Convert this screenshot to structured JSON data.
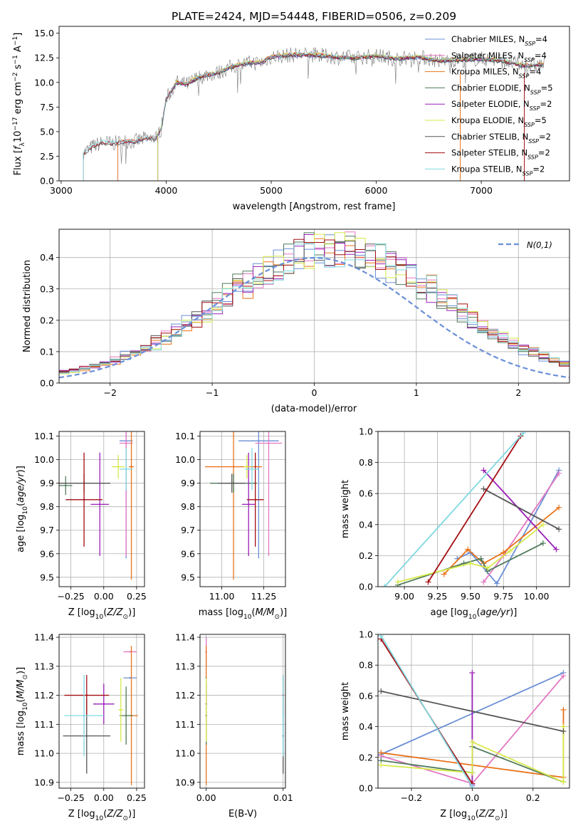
{
  "colors": {
    "Chabrier MILES": "#6b8fd6",
    "Salpeter MILES": "#e377c2",
    "Kroupa MILES": "#e8731a",
    "Chabrier ELODIE": "#4f7a5a",
    "Salpeter ELODIE": "#9a1fb8",
    "Kroupa ELODIE": "#d7e94a",
    "Chabrier STELIB": "#555555",
    "Salpeter STELIB": "#a30d12",
    "Kroupa STELIB": "#7fd8e0"
  },
  "chart_data": [
    {
      "type": "line",
      "title": "PLATE=2424, MJD=54448, FIBERID=0506, z=0.209",
      "xlabel": "wavelength [Angstrom, rest frame]",
      "ylabel": "Flux [f_λ 10^-17 erg cm^-2 s^-1 A^-1]",
      "xlim": [
        2980,
        7840
      ],
      "ylim": [
        0,
        15.7
      ],
      "xticks": [
        3000,
        4000,
        5000,
        6000,
        7000
      ],
      "yticks": [
        0.0,
        2.5,
        5.0,
        7.5,
        10.0,
        12.5,
        15.0
      ],
      "ytick_labels": [
        "0.0",
        "2.5",
        "5.0",
        "7.5",
        "10.0",
        "12.5",
        "15.0"
      ],
      "legend_position": "lower-right",
      "observed_spectrum_approx": {
        "x": [
          3210,
          3300,
          3400,
          3500,
          3600,
          3700,
          3800,
          3900,
          3950,
          4000,
          4100,
          4200,
          4300,
          4400,
          4500,
          4600,
          4700,
          4800,
          4900,
          5000,
          5200,
          5400,
          5600,
          5800,
          6000,
          6200,
          6400,
          6600,
          6800,
          7000,
          7200,
          7400,
          7600
        ],
        "y": [
          2.8,
          3.5,
          3.9,
          3.8,
          4.0,
          4.0,
          4.3,
          4.3,
          5.2,
          8.3,
          10.0,
          9.8,
          10.5,
          10.8,
          11.0,
          11.5,
          11.8,
          12.0,
          12.0,
          12.6,
          12.8,
          12.8,
          12.6,
          12.5,
          12.7,
          12.4,
          12.6,
          12.2,
          12.3,
          12.4,
          12.2,
          11.7,
          11.8
        ]
      },
      "series": [
        {
          "name": "Chabrier MILES, N_SSP=4",
          "start": 3540
        },
        {
          "name": "Salpeter MILES, N_SSP=4",
          "start": 3540
        },
        {
          "name": "Kroupa MILES, N_SSP=4",
          "start": 3540
        },
        {
          "name": "Chabrier ELODIE, N_SSP=5",
          "start": 3920
        },
        {
          "name": "Salpeter ELODIE, N_SSP=2",
          "start": 3920
        },
        {
          "name": "Kroupa ELODIE, N_SSP=5",
          "start": 3920
        },
        {
          "name": "Chabrier STELIB, N_SSP=2",
          "start": 3210
        },
        {
          "name": "Salpeter STELIB, N_SSP=2",
          "start": 3210
        },
        {
          "name": "Kroupa STELIB, N_SSP=2",
          "start": 3210
        }
      ]
    },
    {
      "type": "line",
      "title": "",
      "xlabel": "(data-model)/error",
      "ylabel": "Normed distribution",
      "xlim": [
        -2.5,
        2.5
      ],
      "ylim": [
        0,
        0.49
      ],
      "xticks": [
        -2,
        -1,
        0,
        1,
        2
      ],
      "xtick_labels": [
        "−2",
        "−1",
        "0",
        "1",
        "2"
      ],
      "yticks": [
        0.0,
        0.1,
        0.2,
        0.3,
        0.4
      ],
      "ytick_labels": [
        "0.0",
        "0.1",
        "0.2",
        "0.3",
        "0.4"
      ],
      "legend": "N(0,1)",
      "legend_position": "upper-right",
      "histogram_bin_width": 0.1,
      "histogram_bin_start": -2.5,
      "reference_curve": "normal pdf, mean 0, sd 1"
    },
    {
      "type": "scatter",
      "xlabel": "Z [log10(Z/Z⊙)]",
      "ylabel": "age  [log10(age/yr)]",
      "xlim": [
        -0.34,
        0.31
      ],
      "ylim": [
        9.46,
        10.12
      ],
      "xticks": [
        -0.25,
        0.0,
        0.25
      ],
      "xtick_labels": [
        "−0.25",
        "0.00",
        "0.25"
      ],
      "yticks": [
        9.5,
        9.6,
        9.7,
        9.8,
        9.9,
        10.0,
        10.1
      ],
      "points": [
        {
          "name": "Chabrier MILES",
          "x": 0.17,
          "xerr": 0.05,
          "y": 10.08,
          "yerr": 0.5
        },
        {
          "name": "Salpeter MILES",
          "x": 0.17,
          "xerr": 0.05,
          "y": 10.07,
          "yerr": 0.48
        },
        {
          "name": "Kroupa MILES",
          "x": 0.21,
          "xerr": 0.02,
          "y": 9.97,
          "yerr": 0.48
        },
        {
          "name": "Chabrier ELODIE",
          "x": -0.29,
          "xerr": 0.05,
          "y": 9.89,
          "yerr": 0.04
        },
        {
          "name": "Salpeter ELODIE",
          "x": -0.03,
          "xerr": 0.07,
          "y": 9.81,
          "yerr": 0.22
        },
        {
          "name": "Kroupa ELODIE",
          "x": 0.11,
          "xerr": 0.05,
          "y": 9.97,
          "yerr": 0.05
        },
        {
          "name": "Chabrier STELIB",
          "x": -0.15,
          "xerr": 0.2,
          "y": 9.9,
          "yerr": 0.04
        },
        {
          "name": "Salpeter STELIB",
          "x": -0.15,
          "xerr": 0.14,
          "y": 9.83,
          "yerr": 0.2
        },
        {
          "name": "Kroupa STELIB",
          "x": 0.17,
          "xerr": 0.05,
          "y": 9.96,
          "yerr": 0.09
        }
      ]
    },
    {
      "type": "scatter",
      "xlabel": "mass [log10(M/M⊙)]",
      "ylabel": "",
      "xlim": [
        10.87,
        11.38
      ],
      "ylim": [
        9.46,
        10.12
      ],
      "xticks": [
        11.0,
        11.25
      ],
      "xtick_labels": [
        "11.00",
        "11.25"
      ],
      "yticks": [
        9.5,
        9.6,
        9.7,
        9.8,
        9.9,
        10.0,
        10.1
      ],
      "points": [
        {
          "name": "Chabrier MILES",
          "x": 11.22,
          "xerr": 0.12,
          "y": 10.08,
          "yerr": 0.5
        },
        {
          "name": "Salpeter MILES",
          "x": 11.28,
          "xerr": 0.08,
          "y": 10.07,
          "yerr": 0.48
        },
        {
          "name": "Kroupa MILES",
          "x": 11.07,
          "xerr": 0.17,
          "y": 9.97,
          "yerr": 0.48
        },
        {
          "name": "Chabrier ELODIE",
          "x": 11.07,
          "xerr": 0.14,
          "y": 9.9,
          "yerr": 0.04
        },
        {
          "name": "Salpeter ELODIE",
          "x": 11.16,
          "xerr": 0.04,
          "y": 9.81,
          "yerr": 0.22
        },
        {
          "name": "Kroupa ELODIE",
          "x": 11.15,
          "xerr": 0.02,
          "y": 9.97,
          "yerr": 0.05
        },
        {
          "name": "Chabrier STELIB",
          "x": 11.06,
          "xerr": 0.08,
          "y": 9.9,
          "yerr": 0.04
        },
        {
          "name": "Salpeter STELIB",
          "x": 11.2,
          "xerr": 0.05,
          "y": 9.83,
          "yerr": 0.2
        },
        {
          "name": "Kroupa STELIB",
          "x": 11.18,
          "xerr": 0.04,
          "y": 9.96,
          "yerr": 0.09
        }
      ]
    },
    {
      "type": "line",
      "xlabel": "age  [log10(age/yr)]",
      "ylabel": "mass weight",
      "xlim": [
        8.8,
        10.25
      ],
      "ylim": [
        0,
        1.0
      ],
      "xticks": [
        9.0,
        9.25,
        9.5,
        9.75,
        10.0
      ],
      "xtick_labels": [
        "9.00",
        "9.25",
        "9.50",
        "9.75",
        "10.00"
      ],
      "yticks": [
        0.0,
        0.2,
        0.4,
        0.6,
        0.8,
        1.0
      ],
      "ytick_labels": [
        "0.0",
        "0.2",
        "0.4",
        "0.6",
        "0.8",
        "1.0"
      ],
      "series": [
        {
          "name": "Chabrier MILES",
          "x": [
            9.4,
            9.5,
            9.7,
            10.17
          ],
          "y": [
            0.18,
            0.22,
            0.02,
            0.75
          ]
        },
        {
          "name": "Salpeter MILES",
          "x": [
            9.6,
            9.75,
            10.17
          ],
          "y": [
            0.03,
            0.2,
            0.73
          ]
        },
        {
          "name": "Kroupa MILES",
          "x": [
            9.3,
            9.48,
            9.6,
            9.75,
            10.17
          ],
          "y": [
            0.08,
            0.24,
            0.15,
            0.22,
            0.51
          ]
        },
        {
          "name": "Chabrier ELODIE",
          "x": [
            8.95,
            9.45,
            9.58,
            9.63,
            10.05
          ],
          "y": [
            0.01,
            0.15,
            0.18,
            0.1,
            0.28
          ]
        },
        {
          "name": "Salpeter ELODIE",
          "x": [
            9.6,
            10.15
          ],
          "y": [
            0.75,
            0.24
          ]
        },
        {
          "name": "Kroupa ELODIE",
          "x": [
            8.95,
            9.5,
            9.63,
            9.8,
            10.05
          ],
          "y": [
            0.03,
            0.15,
            0.12,
            0.23,
            0.4
          ]
        },
        {
          "name": "Chabrier STELIB",
          "x": [
            9.6,
            10.17
          ],
          "y": [
            0.63,
            0.37
          ]
        },
        {
          "name": "Salpeter STELIB",
          "x": [
            9.18,
            9.88
          ],
          "y": [
            0.03,
            0.97
          ]
        },
        {
          "name": "Kroupa STELIB",
          "x": [
            8.85,
            9.9
          ],
          "y": [
            0.0,
            0.99
          ]
        }
      ]
    },
    {
      "type": "scatter",
      "xlabel": "Z [log10(Z/Z⊙)]",
      "ylabel": "mass [log10(M/M⊙)]",
      "xlim": [
        -0.34,
        0.31
      ],
      "ylim": [
        10.88,
        11.41
      ],
      "xticks": [
        -0.25,
        0.0,
        0.25
      ],
      "xtick_labels": [
        "−0.25",
        "0.00",
        "0.25"
      ],
      "yticks": [
        10.9,
        11.0,
        11.1,
        11.2,
        11.3,
        11.4
      ],
      "points": [
        {
          "name": "Chabrier MILES",
          "x": 0.2,
          "xerr": 0.05,
          "y": 11.26,
          "yerr": 0.0
        },
        {
          "name": "Salpeter MILES",
          "x": 0.2,
          "xerr": 0.05,
          "y": 11.35,
          "yerr": 0.0
        },
        {
          "name": "Kroupa MILES",
          "x": 0.21,
          "xerr": 0.05,
          "y": 11.13,
          "yerr": 0.24
        },
        {
          "name": "Chabrier ELODIE",
          "x": 0.17,
          "xerr": 0.05,
          "y": 11.13,
          "yerr": 0.1
        },
        {
          "name": "Salpeter ELODIE",
          "x": 0.0,
          "xerr": 0.08,
          "y": 11.17,
          "yerr": 0.07
        },
        {
          "name": "Kroupa ELODIE",
          "x": 0.13,
          "xerr": 0.02,
          "y": 11.15,
          "yerr": 0.11
        },
        {
          "name": "Chabrier STELIB",
          "x": -0.13,
          "xerr": 0.18,
          "y": 11.06,
          "yerr": 0.13
        },
        {
          "name": "Salpeter STELIB",
          "x": -0.13,
          "xerr": 0.17,
          "y": 11.2,
          "yerr": 0.07
        },
        {
          "name": "Kroupa STELIB",
          "x": -0.15,
          "xerr": 0.15,
          "y": 11.13,
          "yerr": 0.14
        }
      ]
    },
    {
      "type": "scatter",
      "xlabel": "E(B-V)",
      "ylabel": "",
      "xlim": [
        -0.0008,
        0.0103
      ],
      "ylim": [
        10.88,
        11.41
      ],
      "xticks": [
        0.0,
        0.01
      ],
      "xtick_labels": [
        "0.00",
        "0.01"
      ],
      "yticks": [
        10.9,
        11.0,
        11.1,
        11.2,
        11.3,
        11.4
      ],
      "points": [
        {
          "name": "Chabrier MILES",
          "x": 0.0,
          "y": 11.26,
          "yerr": 0.0
        },
        {
          "name": "Salpeter MILES",
          "x": 0.0,
          "y": 11.35,
          "yerr": 0.05
        },
        {
          "name": "Kroupa MILES",
          "x": 0.0,
          "y": 11.13,
          "yerr": 0.24
        },
        {
          "name": "Chabrier ELODIE",
          "x": 0.0,
          "y": 11.13,
          "yerr": 0.1
        },
        {
          "name": "Salpeter ELODIE",
          "x": 0.0,
          "y": 11.17,
          "yerr": 0.07
        },
        {
          "name": "Kroupa ELODIE",
          "x": 0.0,
          "y": 11.15,
          "yerr": 0.11
        },
        {
          "name": "Chabrier STELIB",
          "x": 0.01,
          "y": 11.06,
          "yerr": 0.13
        },
        {
          "name": "Salpeter STELIB",
          "x": 0.01,
          "y": 11.2,
          "yerr": 0.07
        },
        {
          "name": "Kroupa STELIB",
          "x": 0.01,
          "y": 11.13,
          "yerr": 0.14
        }
      ]
    },
    {
      "type": "line",
      "xlabel": "Z [log10(Z/Z⊙)]",
      "ylabel": "mass weight",
      "xlim": [
        -0.31,
        0.32
      ],
      "ylim": [
        0,
        1.0
      ],
      "xticks": [
        -0.2,
        0.0,
        0.2
      ],
      "xtick_labels": [
        "−0.2",
        "0.0",
        "0.2"
      ],
      "yticks": [
        0.0,
        0.2,
        0.4,
        0.6,
        0.8,
        1.0
      ],
      "ytick_labels": [
        "0.0",
        "0.2",
        "0.4",
        "0.6",
        "0.8",
        "1.0"
      ],
      "series": [
        {
          "name": "Chabrier MILES",
          "x": [
            -0.3,
            0.3
          ],
          "y": [
            0.22,
            0.75
          ]
        },
        {
          "name": "Salpeter MILES",
          "x": [
            -0.3,
            0.0,
            0.3
          ],
          "y": [
            0.21,
            0.03,
            0.73
          ]
        },
        {
          "name": "Kroupa MILES",
          "x": [
            -0.3,
            0.3,
            0.3
          ],
          "y": [
            0.23,
            0.07,
            0.51
          ]
        },
        {
          "name": "Chabrier ELODIE",
          "x": [
            -0.3,
            0.0,
            0.0,
            0.3
          ],
          "y": [
            0.18,
            0.1,
            0.27,
            0.04
          ]
        },
        {
          "name": "Salpeter ELODIE",
          "x": [
            0.0,
            0.0
          ],
          "y": [
            0.02,
            0.75
          ]
        },
        {
          "name": "Kroupa ELODIE",
          "x": [
            -0.3,
            0.0,
            0.0,
            0.3,
            0.3
          ],
          "y": [
            0.15,
            0.1,
            0.3,
            0.04,
            0.4
          ]
        },
        {
          "name": "Chabrier STELIB",
          "x": [
            -0.3,
            0.3
          ],
          "y": [
            0.63,
            0.37
          ]
        },
        {
          "name": "Salpeter STELIB",
          "x": [
            -0.3,
            0.0
          ],
          "y": [
            0.97,
            0.03
          ]
        },
        {
          "name": "Kroupa STELIB",
          "x": [
            -0.3,
            0.0
          ],
          "y": [
            0.99,
            0.01
          ]
        }
      ]
    }
  ]
}
